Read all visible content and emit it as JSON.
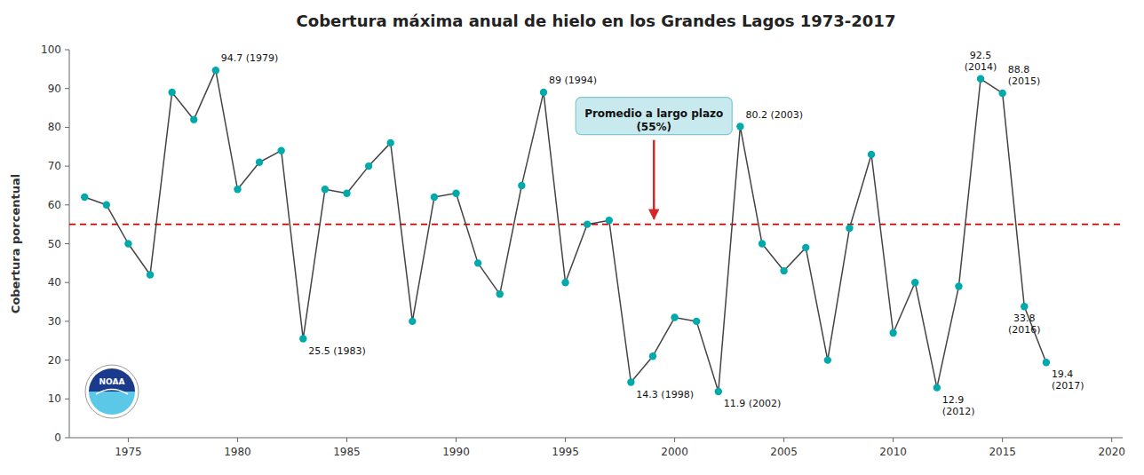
{
  "chart_data": {
    "type": "line",
    "title": "Cobertura máxima anual de hielo en los Grandes Lagos 1973-2017",
    "y_label": "Cobertura porcentual",
    "x": [
      1973,
      1974,
      1975,
      1976,
      1977,
      1978,
      1979,
      1980,
      1981,
      1982,
      1983,
      1984,
      1985,
      1986,
      1987,
      1988,
      1989,
      1990,
      1991,
      1992,
      1993,
      1994,
      1995,
      1996,
      1997,
      1998,
      1999,
      2000,
      2001,
      2002,
      2003,
      2004,
      2005,
      2006,
      2007,
      2008,
      2009,
      2010,
      2011,
      2012,
      2013,
      2014,
      2015,
      2016,
      2017
    ],
    "values": [
      62,
      60,
      50,
      42,
      89,
      82,
      94.7,
      64,
      71,
      74,
      25.5,
      64,
      63,
      70,
      76,
      30,
      62,
      63,
      45,
      37,
      65,
      89,
      40,
      55,
      56,
      14.3,
      21,
      31,
      30,
      11.9,
      80.2,
      50,
      43,
      49,
      20,
      54,
      73,
      27,
      40,
      12.9,
      39,
      92.5,
      88.8,
      33.8,
      19.4
    ],
    "color": "#00AAAA",
    "marker": "circle",
    "reference_line": {
      "value": 55,
      "label": [
        "Promedio a largo plazo",
        "(55%)"
      ],
      "color": "#CC0000",
      "line_style": "dashed"
    },
    "annotations": [
      {
        "x": 1979,
        "y": 94.7,
        "text": "94.7 (1979)"
      },
      {
        "x": 1983,
        "y": 25.5,
        "text": "25.5 (1983)"
      },
      {
        "x": 1994,
        "y": 89,
        "text": "89 (1994)"
      },
      {
        "x": 1998,
        "y": 14.3,
        "text": "14.3 (1998)"
      },
      {
        "x": 2002,
        "y": 11.9,
        "text": "11.9 (2002)"
      },
      {
        "x": 2003,
        "y": 80.2,
        "text": "80.2 (2003)"
      },
      {
        "x": 2012,
        "y": 12.9,
        "text": "12.9\n(2012)"
      },
      {
        "x": 2014,
        "y": 92.5,
        "text": "92.5\n(2014)"
      },
      {
        "x": 2015,
        "y": 88.8,
        "text": "88.8\n(2015)"
      },
      {
        "x": 2016,
        "y": 33.8,
        "text": "33.8\n(2016)"
      },
      {
        "x": 2017,
        "y": 19.4,
        "text": "19.4\n(2017)"
      }
    ],
    "logo_text": "NOAA",
    "xlim": [
      1972.3,
      2020.5
    ],
    "ylim": [
      0,
      100
    ],
    "xticks": [
      1975,
      1980,
      1985,
      1990,
      1995,
      2000,
      2005,
      2010,
      2015,
      2020
    ],
    "yticks": [
      0,
      10,
      20,
      30,
      40,
      50,
      60,
      70,
      80,
      90,
      100
    ],
    "grid": false
  }
}
